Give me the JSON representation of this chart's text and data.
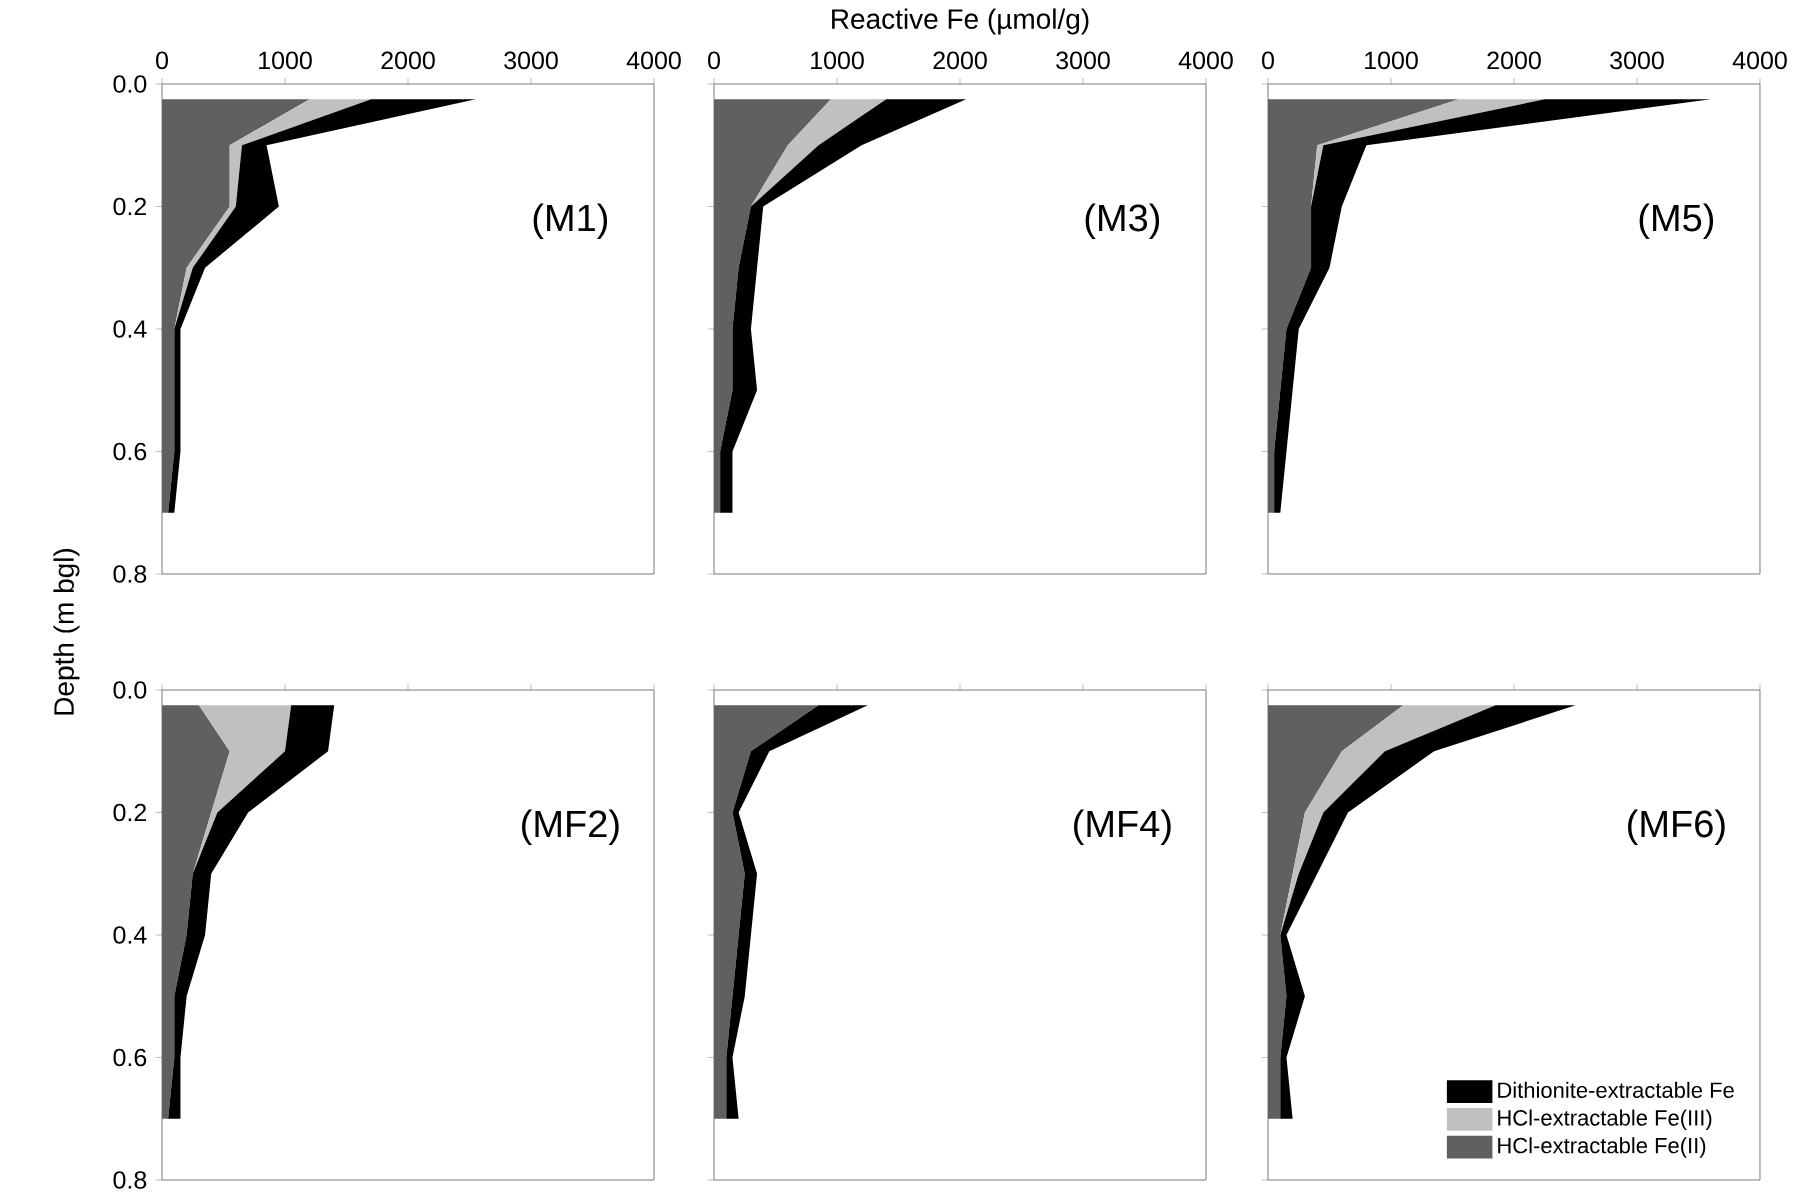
{
  "chart_data": [
    {
      "type": "area",
      "stacked": true,
      "orientation": "horizontal",
      "ylabel": "Depth (m bgl)",
      "annotations": [
        "(M1)"
      ],
      "x": [
        0.025,
        0.1,
        0.2,
        0.3,
        0.4,
        0.5,
        0.6,
        0.7
      ],
      "xlim": [
        0,
        4000
      ],
      "xticks": [
        0,
        1000,
        2000,
        3000,
        4000
      ],
      "ylim": [
        0.8,
        0.0
      ],
      "yticks": [
        {
          "value": 0.0,
          "label": "0.0"
        },
        {
          "value": 0.2,
          "label": "0.2"
        },
        {
          "value": 0.4,
          "label": "0.4"
        },
        {
          "value": 0.6,
          "label": "0.6"
        },
        {
          "value": 0.8,
          "label": "0.8"
        }
      ],
      "series": [
        {
          "color": "#606060",
          "values": [
            1200,
            550,
            550,
            200,
            100,
            100,
            100,
            50
          ]
        },
        {
          "color": "#c0c0c0",
          "values": [
            500,
            100,
            50,
            50,
            0,
            0,
            0,
            0
          ]
        },
        {
          "color": "#000000",
          "values": [
            850,
            200,
            350,
            100,
            50,
            50,
            50,
            50
          ]
        }
      ]
    },
    {
      "type": "area",
      "stacked": true,
      "orientation": "horizontal",
      "xlabel": "Reactive Fe (µmol/g)",
      "annotations": [
        "(M3)"
      ],
      "tick_labels": "x",
      "x": [
        0.025,
        0.1,
        0.2,
        0.3,
        0.4,
        0.5,
        0.6,
        0.7
      ],
      "xlim": [
        0,
        4000
      ],
      "xticks": [
        0,
        1000,
        2000,
        3000,
        4000
      ],
      "ylim": [
        0.8,
        0.0
      ],
      "yticks": [
        0.0,
        0.2,
        0.4,
        0.6,
        0.8
      ],
      "series": [
        {
          "color": "#606060",
          "values": [
            950,
            600,
            300,
            200,
            150,
            150,
            50,
            50
          ]
        },
        {
          "color": "#c0c0c0",
          "values": [
            450,
            250,
            0,
            0,
            0,
            0,
            0,
            0
          ]
        },
        {
          "color": "#000000",
          "values": [
            650,
            350,
            100,
            150,
            150,
            200,
            100,
            100
          ]
        }
      ]
    },
    {
      "type": "area",
      "stacked": true,
      "orientation": "horizontal",
      "annotations": [
        "(M5)"
      ],
      "tick_labels": "x",
      "x": [
        0.025,
        0.1,
        0.2,
        0.3,
        0.4,
        0.5,
        0.6,
        0.7
      ],
      "xlim": [
        0,
        4000
      ],
      "xticks": [
        0,
        1000,
        2000,
        3000,
        4000
      ],
      "ylim": [
        0.8,
        0.0
      ],
      "yticks": [
        0.0,
        0.2,
        0.4,
        0.6,
        0.8
      ],
      "series": [
        {
          "color": "#606060",
          "values": [
            1550,
            400,
            350,
            350,
            150,
            100,
            50,
            50
          ]
        },
        {
          "color": "#c0c0c0",
          "values": [
            700,
            50,
            0,
            0,
            0,
            0,
            0,
            0
          ]
        },
        {
          "color": "#000000",
          "values": [
            1350,
            350,
            250,
            150,
            100,
            100,
            100,
            50
          ]
        }
      ]
    },
    {
      "type": "area",
      "stacked": true,
      "orientation": "horizontal",
      "annotations": [
        "(MF2)"
      ],
      "tick_labels": "y",
      "x": [
        0.025,
        0.1,
        0.2,
        0.3,
        0.4,
        0.5,
        0.6,
        0.7
      ],
      "xlim": [
        0,
        4000
      ],
      "xticks": [
        0,
        1000,
        2000,
        3000,
        4000
      ],
      "ylim": [
        0.8,
        0.0
      ],
      "yticks": [
        {
          "value": 0.0,
          "label": "0.0"
        },
        {
          "value": 0.2,
          "label": "0.2"
        },
        {
          "value": 0.4,
          "label": "0.4"
        },
        {
          "value": 0.6,
          "label": "0.6"
        },
        {
          "value": 0.8,
          "label": "0.8"
        }
      ],
      "series": [
        {
          "color": "#606060",
          "values": [
            300,
            550,
            400,
            250,
            200,
            100,
            100,
            50
          ]
        },
        {
          "color": "#c0c0c0",
          "values": [
            750,
            450,
            50,
            0,
            0,
            0,
            0,
            0
          ]
        },
        {
          "color": "#000000",
          "values": [
            350,
            350,
            250,
            150,
            150,
            100,
            50,
            100
          ]
        }
      ]
    },
    {
      "type": "area",
      "stacked": true,
      "orientation": "horizontal",
      "annotations": [
        "(MF4)"
      ],
      "tick_labels": false,
      "x": [
        0.025,
        0.1,
        0.2,
        0.3,
        0.4,
        0.5,
        0.6,
        0.7
      ],
      "xlim": [
        0,
        4000
      ],
      "xticks": [
        0,
        1000,
        2000,
        3000,
        4000
      ],
      "ylim": [
        0.8,
        0.0
      ],
      "yticks": [
        0.0,
        0.2,
        0.4,
        0.6,
        0.8
      ],
      "series": [
        {
          "color": "#606060",
          "values": [
            850,
            300,
            150,
            250,
            200,
            150,
            100,
            100
          ]
        },
        {
          "color": "#000000",
          "values": [
            400,
            150,
            50,
            100,
            100,
            100,
            50,
            100
          ]
        }
      ]
    },
    {
      "type": "area",
      "stacked": true,
      "orientation": "horizontal",
      "annotations": [
        "(MF6)"
      ],
      "tick_labels": false,
      "legend": "bottom right",
      "x": [
        0.025,
        0.1,
        0.2,
        0.3,
        0.4,
        0.5,
        0.6,
        0.7
      ],
      "xlim": [
        0,
        4000
      ],
      "xticks": [
        0,
        1000,
        2000,
        3000,
        4000
      ],
      "ylim": [
        0.8,
        0.0
      ],
      "yticks": [
        0.0,
        0.2,
        0.4,
        0.6,
        0.8
      ],
      "series": [
        {
          "name": "HCl-extractable Fe(II)",
          "color": "#606060",
          "values": [
            1100,
            600,
            300,
            200,
            100,
            150,
            100,
            100
          ]
        },
        {
          "name": "HCl-extractable Fe(III)",
          "color": "#c0c0c0",
          "values": [
            750,
            350,
            150,
            50,
            0,
            0,
            0,
            0
          ]
        },
        {
          "name": "Dithionite-extractable Fe",
          "color": "#000000",
          "values": [
            650,
            400,
            200,
            150,
            50,
            150,
            50,
            100
          ]
        }
      ]
    }
  ]
}
